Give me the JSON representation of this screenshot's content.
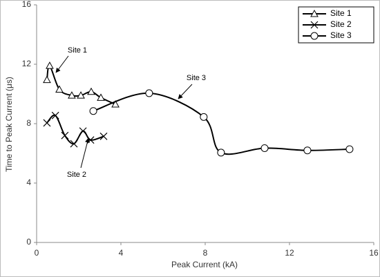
{
  "chart_data": {
    "type": "scatter-smooth",
    "xlabel": "Peak Current (kA)",
    "ylabel": "Time to Peak Current (μs)",
    "xlim": [
      0,
      16
    ],
    "ylim": [
      0,
      16
    ],
    "xticks": [
      0,
      4,
      8,
      12,
      16
    ],
    "yticks": [
      0,
      4,
      8,
      12,
      16
    ],
    "grid": false,
    "legend": "upper right",
    "series": [
      {
        "name": "Site 1",
        "color": "#000000",
        "marker": "triangle",
        "x": [
          0.49,
          0.62,
          1.08,
          1.67,
          2.1,
          2.59,
          3.05,
          3.74
        ],
        "values": [
          10.95,
          11.9,
          10.3,
          9.9,
          9.9,
          10.15,
          9.75,
          9.3
        ]
      },
      {
        "name": "Site 2",
        "color": "#000000",
        "marker": "x",
        "x": [
          0.49,
          0.89,
          1.34,
          1.77,
          2.2,
          2.56,
          3.18
        ],
        "values": [
          8.05,
          8.55,
          7.2,
          6.65,
          7.5,
          6.9,
          7.15
        ]
      },
      {
        "name": "Site 3",
        "color": "#000000",
        "marker": "circle",
        "x": [
          2.69,
          5.34,
          7.93,
          8.75,
          10.82,
          12.85,
          14.85
        ],
        "values": [
          8.85,
          10.05,
          8.45,
          6.05,
          6.35,
          6.2,
          6.28
        ]
      }
    ],
    "annotations": [
      "Site 1",
      "Site 2",
      "Site 3"
    ]
  }
}
